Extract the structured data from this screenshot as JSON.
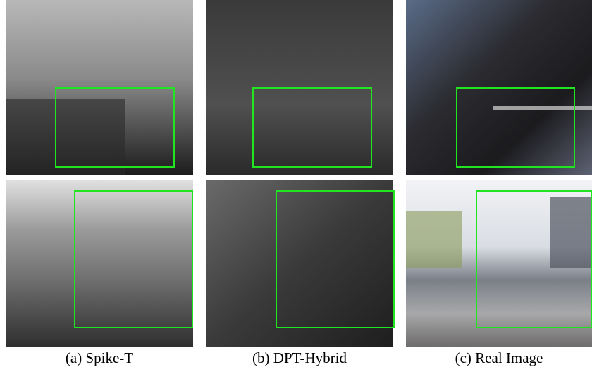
{
  "captions": [
    "(a) Spike-T",
    "(b) DPT-Hybrid",
    "(c) Real Image"
  ]
}
